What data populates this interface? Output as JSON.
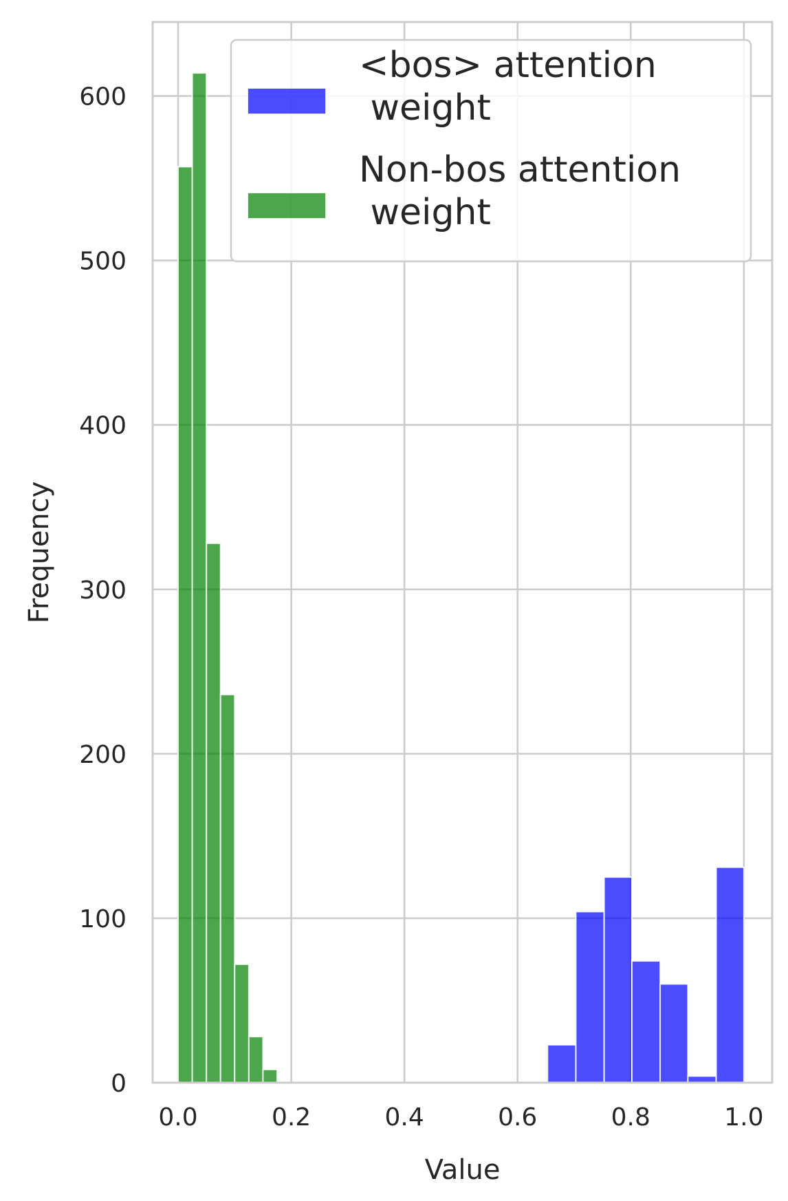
{
  "chart_data": {
    "type": "bar",
    "xlabel": "Value",
    "ylabel": "Frequency",
    "xlim": [
      -0.045,
      1.05
    ],
    "ylim": [
      0,
      645
    ],
    "xticks": [
      0.0,
      0.2,
      0.4,
      0.6,
      0.8,
      1.0
    ],
    "xtick_labels": [
      "0.0",
      "0.2",
      "0.4",
      "0.6",
      "0.8",
      "1.0"
    ],
    "yticks": [
      0,
      100,
      200,
      300,
      400,
      500,
      600
    ],
    "ytick_labels": [
      "0",
      "100",
      "200",
      "300",
      "400",
      "500",
      "600"
    ],
    "grid": true,
    "legend_position": "top-right",
    "series": [
      {
        "name": "<bos> attention\n weight",
        "color": "#0000ff",
        "bins": [
          {
            "x0": 0.653,
            "x1": 0.703,
            "count": 23
          },
          {
            "x0": 0.703,
            "x1": 0.753,
            "count": 104
          },
          {
            "x0": 0.753,
            "x1": 0.802,
            "count": 125
          },
          {
            "x0": 0.802,
            "x1": 0.852,
            "count": 74
          },
          {
            "x0": 0.852,
            "x1": 0.901,
            "count": 60
          },
          {
            "x0": 0.901,
            "x1": 0.951,
            "count": 4
          },
          {
            "x0": 0.951,
            "x1": 1.0,
            "count": 131
          }
        ]
      },
      {
        "name": "Non-bos attention\n weight",
        "color": "#008000",
        "bins": [
          {
            "x0": 0.0,
            "x1": 0.025,
            "count": 557
          },
          {
            "x0": 0.025,
            "x1": 0.05,
            "count": 614
          },
          {
            "x0": 0.05,
            "x1": 0.075,
            "count": 328
          },
          {
            "x0": 0.075,
            "x1": 0.1,
            "count": 236
          },
          {
            "x0": 0.1,
            "x1": 0.125,
            "count": 72
          },
          {
            "x0": 0.125,
            "x1": 0.15,
            "count": 28
          },
          {
            "x0": 0.15,
            "x1": 0.175,
            "count": 8
          }
        ]
      }
    ]
  }
}
